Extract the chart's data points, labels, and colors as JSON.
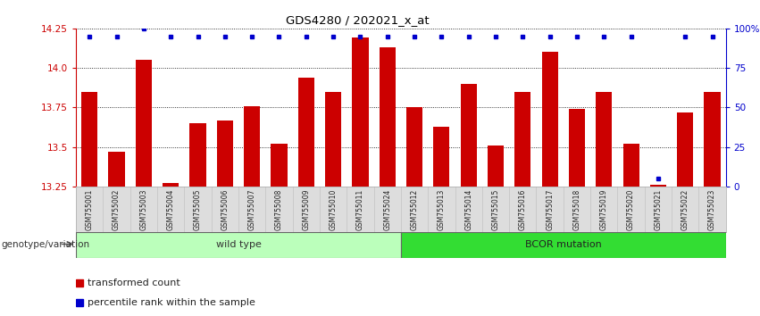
{
  "title": "GDS4280 / 202021_x_at",
  "samples": [
    "GSM755001",
    "GSM755002",
    "GSM755003",
    "GSM755004",
    "GSM755005",
    "GSM755006",
    "GSM755007",
    "GSM755008",
    "GSM755009",
    "GSM755010",
    "GSM755011",
    "GSM755024",
    "GSM755012",
    "GSM755013",
    "GSM755014",
    "GSM755015",
    "GSM755016",
    "GSM755017",
    "GSM755018",
    "GSM755019",
    "GSM755020",
    "GSM755021",
    "GSM755022",
    "GSM755023"
  ],
  "bar_values": [
    13.85,
    13.47,
    14.05,
    13.27,
    13.65,
    13.67,
    13.76,
    13.52,
    13.94,
    13.85,
    14.19,
    14.13,
    13.75,
    13.63,
    13.9,
    13.51,
    13.85,
    14.1,
    13.74,
    13.85,
    13.52,
    13.26,
    13.72,
    13.85
  ],
  "percentile_values": [
    95,
    95,
    100,
    95,
    95,
    95,
    95,
    95,
    95,
    95,
    95,
    95,
    95,
    95,
    95,
    95,
    95,
    95,
    95,
    95,
    95,
    5,
    95,
    95
  ],
  "wild_type_count": 12,
  "bcor_count": 12,
  "ymin": 13.25,
  "ymax": 14.25,
  "yticks": [
    13.25,
    13.5,
    13.75,
    14.0,
    14.25
  ],
  "right_yticks": [
    0,
    25,
    50,
    75,
    100
  ],
  "right_ytick_labels": [
    "0",
    "25",
    "50",
    "75",
    "100%"
  ],
  "bar_color": "#cc0000",
  "percentile_color": "#0000cc",
  "wild_type_color": "#bbffbb",
  "bcor_color": "#33dd33",
  "wild_type_label": "wild type",
  "bcor_label": "BCOR mutation",
  "genotype_label": "genotype/variation",
  "legend_bar_label": "transformed count",
  "legend_pct_label": "percentile rank within the sample",
  "bg_color": "#ffffff",
  "plot_bg_color": "#ffffff",
  "grid_color": "#000000",
  "title_color": "#000000",
  "left_tick_color": "#cc0000",
  "right_tick_color": "#0000cc",
  "xticklabel_bg": "#dddddd",
  "genotype_arrow_color": "#555555"
}
